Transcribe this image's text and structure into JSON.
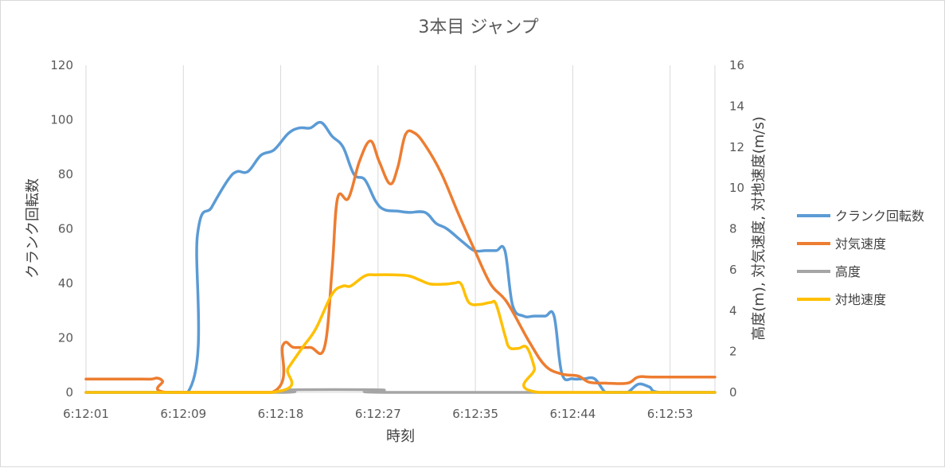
{
  "chart_data": {
    "type": "line",
    "title": "3本目 ジャンプ",
    "xlabel": "時刻",
    "ylabel_left": "クランク回転数",
    "ylabel_right": "高度(m), 対気速度, 対地速度(m/s)",
    "x_tick_labels": [
      "6:12:01",
      "6:12:09",
      "6:12:18",
      "6:12:27",
      "6:12:35",
      "6:12:44",
      "6:12:53"
    ],
    "x_range_seconds": [
      0,
      57.5
    ],
    "left_axis": {
      "ylim": [
        0,
        120
      ],
      "ticks": [
        "0",
        "20",
        "40",
        "60",
        "80",
        "100",
        "120"
      ]
    },
    "right_axis": {
      "ylim": [
        0,
        16
      ],
      "ticks": [
        "0",
        "2",
        "4",
        "6",
        "8",
        "10",
        "12",
        "14",
        "16"
      ]
    },
    "grid": "vertical",
    "legend_position": "right",
    "series": [
      {
        "name": "クランク回転数",
        "axis": "left",
        "color": "#5B9BD5",
        "points": [
          [
            0,
            0
          ],
          [
            9.3,
            0
          ],
          [
            10.2,
            58
          ],
          [
            11.5,
            68
          ],
          [
            13,
            78
          ],
          [
            13.8,
            81
          ],
          [
            14.8,
            81
          ],
          [
            16,
            87
          ],
          [
            17.2,
            89
          ],
          [
            18.5,
            95
          ],
          [
            19.5,
            97
          ],
          [
            20.5,
            97
          ],
          [
            21.5,
            99
          ],
          [
            22.5,
            94
          ],
          [
            23.5,
            90
          ],
          [
            24.5,
            80
          ],
          [
            25.5,
            78
          ],
          [
            26.5,
            70
          ],
          [
            27.3,
            67
          ],
          [
            28.5,
            66.5
          ],
          [
            29.5,
            66
          ],
          [
            31,
            66
          ],
          [
            32,
            62
          ],
          [
            33,
            60
          ],
          [
            34.5,
            55
          ],
          [
            35.5,
            52
          ],
          [
            36.5,
            52
          ],
          [
            37.5,
            52
          ],
          [
            38.3,
            52
          ],
          [
            39,
            32
          ],
          [
            40,
            28
          ],
          [
            41,
            28
          ],
          [
            42,
            28
          ],
          [
            42.8,
            28
          ],
          [
            43.5,
            7
          ],
          [
            44.5,
            5
          ],
          [
            45.5,
            5
          ],
          [
            46.5,
            5
          ],
          [
            47.5,
            0
          ],
          [
            48.5,
            0
          ],
          [
            49.5,
            0
          ],
          [
            50.5,
            3
          ],
          [
            51.5,
            2
          ],
          [
            52.5,
            0
          ],
          [
            57.5,
            0
          ]
        ]
      },
      {
        "name": "対気速度",
        "axis": "right",
        "color": "#ED7D31",
        "points": [
          [
            0,
            0.65
          ],
          [
            5,
            0.65
          ],
          [
            6,
            0.65
          ],
          [
            6.5,
            0.7
          ],
          [
            7,
            0.55
          ],
          [
            7.4,
            0
          ],
          [
            17,
            0
          ],
          [
            18,
            2.3
          ],
          [
            19,
            2.2
          ],
          [
            20.5,
            2.2
          ],
          [
            21.8,
            2.2
          ],
          [
            22.5,
            6
          ],
          [
            23,
            9.5
          ],
          [
            24,
            9.5
          ],
          [
            25,
            11.3
          ],
          [
            26,
            12.3
          ],
          [
            26.8,
            11.3
          ],
          [
            27.8,
            10.2
          ],
          [
            28.5,
            11
          ],
          [
            29.2,
            12.6
          ],
          [
            30,
            12.7
          ],
          [
            31,
            12.1
          ],
          [
            32.5,
            10.7
          ],
          [
            34,
            8.8
          ],
          [
            35.5,
            7
          ],
          [
            37,
            5.3
          ],
          [
            38.5,
            4.4
          ],
          [
            40.5,
            2.5
          ],
          [
            42,
            1.3
          ],
          [
            43.5,
            0.9
          ],
          [
            45,
            0.8
          ],
          [
            46,
            0.5
          ],
          [
            47.5,
            0.45
          ],
          [
            49.5,
            0.45
          ],
          [
            50.5,
            0.75
          ],
          [
            52,
            0.75
          ],
          [
            57.5,
            0.75
          ]
        ]
      },
      {
        "name": "高度",
        "axis": "right",
        "color": "#A5A5A5",
        "points": [
          [
            0,
            0
          ],
          [
            17.8,
            0
          ],
          [
            18.5,
            0.12
          ],
          [
            27,
            0.12
          ],
          [
            27.7,
            0
          ],
          [
            57.5,
            0
          ]
        ]
      },
      {
        "name": "対地速度",
        "axis": "right",
        "color": "#FFC000",
        "points": [
          [
            0,
            0
          ],
          [
            17,
            0
          ],
          [
            18.5,
            1.2
          ],
          [
            19.8,
            2.2
          ],
          [
            21,
            3.1
          ],
          [
            22.5,
            4.8
          ],
          [
            23.5,
            5.2
          ],
          [
            24.2,
            5.2
          ],
          [
            25.5,
            5.7
          ],
          [
            26.5,
            5.75
          ],
          [
            28,
            5.75
          ],
          [
            29.5,
            5.7
          ],
          [
            30.5,
            5.5
          ],
          [
            31.5,
            5.3
          ],
          [
            33,
            5.3
          ],
          [
            33.7,
            5.35
          ],
          [
            34.3,
            5.3
          ],
          [
            35,
            4.4
          ],
          [
            36,
            4.3
          ],
          [
            37,
            4.4
          ],
          [
            37.5,
            4.3
          ],
          [
            38.3,
            2.8
          ],
          [
            38.7,
            2.2
          ],
          [
            39.5,
            2.15
          ],
          [
            40.3,
            2.2
          ],
          [
            41,
            1.2
          ],
          [
            41.4,
            0
          ],
          [
            57.5,
            0
          ]
        ]
      }
    ]
  }
}
